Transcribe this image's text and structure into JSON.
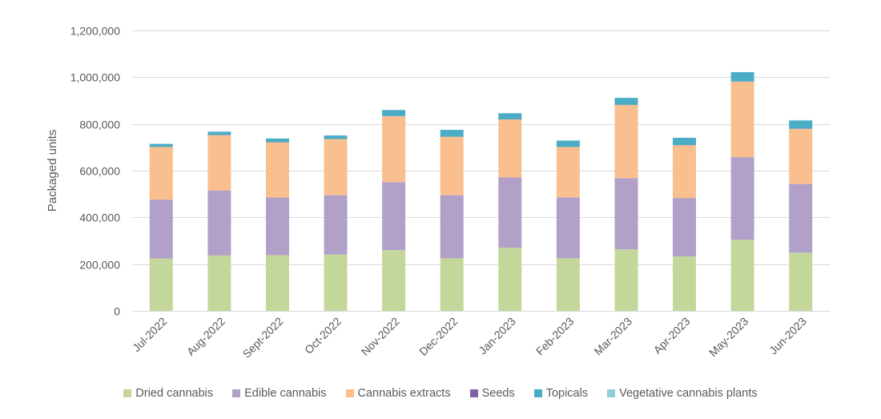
{
  "chart_data": {
    "type": "bar",
    "stacked": true,
    "title": "",
    "xlabel": "",
    "ylabel": "Packaged units",
    "ylim": [
      0,
      1200000
    ],
    "yticks": [
      0,
      200000,
      400000,
      600000,
      800000,
      1000000,
      1200000
    ],
    "ytick_labels": [
      "0",
      "200,000",
      "400,000",
      "600,000",
      "800,000",
      "1,000,000",
      "1,200,000"
    ],
    "grid": true,
    "legend_position": "bottom",
    "categories": [
      "Jul-2022",
      "Aug-2022",
      "Sept-2022",
      "Oct-2022",
      "Nov-2022",
      "Dec-2022",
      "Jan-2023",
      "Feb-2023",
      "Mar-2023",
      "Apr-2023",
      "May-2023",
      "Jun-2023"
    ],
    "series": [
      {
        "name": "Dried cannabis",
        "color": "#C4D79B",
        "values": [
          224000,
          237000,
          238000,
          241000,
          260000,
          225000,
          270000,
          225000,
          263000,
          233000,
          304000,
          249000
        ]
      },
      {
        "name": "Edible cannabis",
        "color": "#B1A0C7",
        "values": [
          252000,
          278000,
          247000,
          254000,
          291000,
          270000,
          301000,
          261000,
          305000,
          250000,
          354000,
          294000
        ]
      },
      {
        "name": "Cannabis extracts",
        "color": "#FABF8F",
        "values": [
          225000,
          237000,
          236000,
          240000,
          282000,
          250000,
          248000,
          215000,
          313000,
          226000,
          323000,
          236000
        ]
      },
      {
        "name": "Seeds",
        "color": "#8064A2",
        "values": [
          500,
          500,
          500,
          500,
          500,
          500,
          500,
          500,
          500,
          500,
          500,
          500
        ]
      },
      {
        "name": "Topicals",
        "color": "#4BACC6",
        "values": [
          13000,
          14000,
          16000,
          15000,
          26000,
          29000,
          26000,
          27000,
          30000,
          31000,
          40000,
          34000
        ]
      },
      {
        "name": "Vegetative cannabis plants",
        "color": "#92CDDC",
        "values": [
          500,
          500,
          500,
          500,
          500,
          500,
          500,
          500,
          500,
          500,
          500,
          3000
        ]
      }
    ]
  }
}
